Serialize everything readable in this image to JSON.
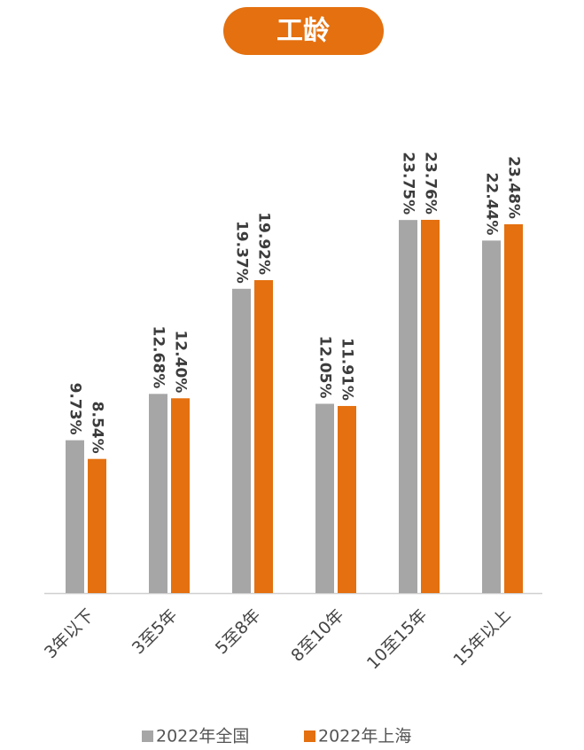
{
  "chart_data": {
    "type": "bar",
    "title": "工龄",
    "categories": [
      "3年以下",
      "3至5年",
      "5至8年",
      "8至10年",
      "10至15年",
      "15年以上"
    ],
    "series": [
      {
        "name": "2022年全国",
        "color": "#a6a6a6",
        "values": [
          9.73,
          12.68,
          19.37,
          12.05,
          23.75,
          22.44
        ],
        "value_labels": [
          "9.73%",
          "12.68%",
          "19.37%",
          "12.05%",
          "23.75%",
          "22.44%"
        ]
      },
      {
        "name": "2022年上海",
        "color": "#e4700f",
        "values": [
          8.54,
          12.4,
          19.92,
          11.91,
          23.76,
          23.48
        ],
        "value_labels": [
          "8.54%",
          "12.40%",
          "19.92%",
          "11.91%",
          "23.76%",
          "23.48%"
        ]
      }
    ]
  }
}
